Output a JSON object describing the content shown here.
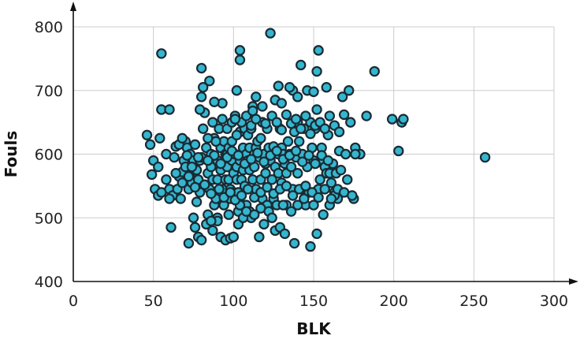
{
  "chart_data": {
    "type": "scatter",
    "title": "",
    "xlabel": "BLK",
    "ylabel": "Fouls",
    "xlim": [
      0,
      300
    ],
    "ylim": [
      400,
      800
    ],
    "xticks": [
      0,
      50,
      100,
      150,
      200,
      250,
      300
    ],
    "yticks": [
      400,
      500,
      600,
      700,
      800
    ],
    "grid": true,
    "legend": "none",
    "marker_color": "#35b6cf",
    "marker_edge_color": "#1a2a33",
    "points": [
      [
        46,
        630
      ],
      [
        48,
        615
      ],
      [
        49,
        568
      ],
      [
        50,
        590
      ],
      [
        51,
        545
      ],
      [
        53,
        535
      ],
      [
        54,
        625
      ],
      [
        55,
        670
      ],
      [
        53,
        580
      ],
      [
        55,
        758
      ],
      [
        55,
        540
      ],
      [
        58,
        560
      ],
      [
        58,
        600
      ],
      [
        60,
        670
      ],
      [
        60,
        545
      ],
      [
        61,
        485
      ],
      [
        62,
        535
      ],
      [
        63,
        595
      ],
      [
        64,
        612
      ],
      [
        66,
        565
      ],
      [
        67,
        530
      ],
      [
        68,
        572
      ],
      [
        69,
        590
      ],
      [
        70,
        620
      ],
      [
        71,
        610
      ],
      [
        72,
        545
      ],
      [
        73,
        600
      ],
      [
        73,
        570
      ],
      [
        74,
        555
      ],
      [
        75,
        590
      ],
      [
        76,
        615
      ],
      [
        77,
        575
      ],
      [
        77,
        525
      ],
      [
        78,
        560
      ],
      [
        79,
        590
      ],
      [
        79,
        540
      ],
      [
        80,
        595
      ],
      [
        80,
        735
      ],
      [
        80,
        690
      ],
      [
        81,
        705
      ],
      [
        82,
        665
      ],
      [
        83,
        610
      ],
      [
        84,
        570
      ],
      [
        85,
        545
      ],
      [
        86,
        600
      ],
      [
        86,
        580
      ],
      [
        87,
        560
      ],
      [
        88,
        520
      ],
      [
        88,
        625
      ],
      [
        89,
        530
      ],
      [
        90,
        590
      ],
      [
        90,
        560
      ],
      [
        90,
        500
      ],
      [
        91,
        640
      ],
      [
        92,
        610
      ],
      [
        92,
        575
      ],
      [
        93,
        545
      ],
      [
        94,
        520
      ],
      [
        94,
        620
      ],
      [
        95,
        600
      ],
      [
        95,
        560
      ],
      [
        96,
        600
      ],
      [
        96,
        580
      ],
      [
        97,
        610
      ],
      [
        97,
        560
      ],
      [
        98,
        545
      ],
      [
        98,
        530
      ],
      [
        99,
        620
      ],
      [
        99,
        590
      ],
      [
        100,
        570
      ],
      [
        100,
        540
      ],
      [
        101,
        660
      ],
      [
        101,
        600
      ],
      [
        102,
        580
      ],
      [
        102,
        560
      ],
      [
        103,
        540
      ],
      [
        103,
        510
      ],
      [
        104,
        635
      ],
      [
        104,
        590
      ],
      [
        105,
        560
      ],
      [
        105,
        520
      ],
      [
        106,
        610
      ],
      [
        106,
        575
      ],
      [
        107,
        640
      ],
      [
        107,
        550
      ],
      [
        108,
        600
      ],
      [
        108,
        520
      ],
      [
        109,
        630
      ],
      [
        109,
        590
      ],
      [
        110,
        610
      ],
      [
        110,
        575
      ],
      [
        111,
        640
      ],
      [
        111,
        500
      ],
      [
        112,
        560
      ],
      [
        112,
        675
      ],
      [
        113,
        600
      ],
      [
        113,
        580
      ],
      [
        114,
        545
      ],
      [
        114,
        610
      ],
      [
        115,
        620
      ],
      [
        116,
        595
      ],
      [
        117,
        560
      ],
      [
        118,
        650
      ],
      [
        118,
        530
      ],
      [
        119,
        600
      ],
      [
        120,
        585
      ],
      [
        120,
        570
      ],
      [
        121,
        640
      ],
      [
        121,
        520
      ],
      [
        122,
        610
      ],
      [
        123,
        590
      ],
      [
        124,
        560
      ],
      [
        125,
        530
      ],
      [
        125,
        612
      ],
      [
        126,
        580
      ],
      [
        127,
        520
      ],
      [
        128,
        600
      ],
      [
        128,
        570
      ],
      [
        129,
        640
      ],
      [
        130,
        610
      ],
      [
        130,
        555
      ],
      [
        131,
        600
      ],
      [
        132,
        585
      ],
      [
        133,
        570
      ],
      [
        133,
        520
      ],
      [
        134,
        620
      ],
      [
        135,
        600
      ],
      [
        136,
        580
      ],
      [
        137,
        545
      ],
      [
        137,
        700
      ],
      [
        138,
        635
      ],
      [
        139,
        595
      ],
      [
        140,
        570
      ],
      [
        140,
        650
      ],
      [
        141,
        620
      ],
      [
        142,
        545
      ],
      [
        143,
        600
      ],
      [
        144,
        640
      ],
      [
        145,
        520
      ],
      [
        146,
        580
      ],
      [
        147,
        540
      ],
      [
        148,
        650
      ],
      [
        149,
        610
      ],
      [
        150,
        520
      ],
      [
        150,
        590
      ],
      [
        151,
        640
      ],
      [
        152,
        730
      ],
      [
        152,
        670
      ],
      [
        153,
        545
      ],
      [
        154,
        560
      ],
      [
        155,
        610
      ],
      [
        156,
        590
      ],
      [
        157,
        580
      ],
      [
        158,
        570
      ],
      [
        159,
        630
      ],
      [
        160,
        570
      ],
      [
        161,
        555
      ],
      [
        162,
        585
      ],
      [
        163,
        540
      ],
      [
        164,
        570
      ],
      [
        165,
        530
      ],
      [
        166,
        605
      ],
      [
        167,
        575
      ],
      [
        170,
        600
      ],
      [
        171,
        560
      ],
      [
        172,
        700
      ],
      [
        175,
        530
      ],
      [
        176,
        610
      ],
      [
        179,
        600
      ],
      [
        183,
        660
      ],
      [
        188,
        730
      ],
      [
        199,
        655
      ],
      [
        203,
        605
      ],
      [
        205,
        650
      ],
      [
        206,
        655
      ],
      [
        257,
        595
      ],
      [
        60,
        530
      ],
      [
        65,
        545
      ],
      [
        70,
        580
      ],
      [
        75,
        500
      ],
      [
        78,
        470
      ],
      [
        80,
        465
      ],
      [
        83,
        490
      ],
      [
        87,
        480
      ],
      [
        90,
        495
      ],
      [
        92,
        470
      ],
      [
        95,
        465
      ],
      [
        98,
        468
      ],
      [
        100,
        470
      ],
      [
        103,
        490
      ],
      [
        106,
        500
      ],
      [
        110,
        510
      ],
      [
        113,
        505
      ],
      [
        117,
        515
      ],
      [
        122,
        510
      ],
      [
        126,
        480
      ],
      [
        129,
        485
      ],
      [
        132,
        475
      ],
      [
        136,
        510
      ],
      [
        140,
        520
      ],
      [
        144,
        530
      ],
      [
        148,
        455
      ],
      [
        152,
        475
      ],
      [
        156,
        505
      ],
      [
        160,
        520
      ],
      [
        163,
        535
      ],
      [
        72,
        460
      ],
      [
        76,
        485
      ],
      [
        84,
        505
      ],
      [
        86,
        495
      ],
      [
        97,
        505
      ],
      [
        104,
        520
      ],
      [
        108,
        510
      ],
      [
        119,
        490
      ],
      [
        124,
        500
      ],
      [
        131,
        520
      ],
      [
        123,
        790
      ],
      [
        104,
        763
      ],
      [
        104,
        748
      ],
      [
        153,
        763
      ],
      [
        142,
        740
      ],
      [
        85,
        715
      ],
      [
        102,
        700
      ],
      [
        128,
        707
      ],
      [
        135,
        705
      ],
      [
        146,
        700
      ],
      [
        66,
        615
      ],
      [
        68,
        625
      ],
      [
        71,
        598
      ],
      [
        74,
        580
      ],
      [
        78,
        595
      ],
      [
        81,
        640
      ],
      [
        84,
        625
      ],
      [
        87,
        650
      ],
      [
        89,
        620
      ],
      [
        93,
        655
      ],
      [
        96,
        640
      ],
      [
        99,
        650
      ],
      [
        102,
        630
      ],
      [
        105,
        650
      ],
      [
        108,
        660
      ],
      [
        111,
        645
      ],
      [
        114,
        655
      ],
      [
        117,
        625
      ],
      [
        120,
        648
      ],
      [
        124,
        660
      ],
      [
        127,
        650
      ],
      [
        130,
        638
      ],
      [
        133,
        662
      ],
      [
        136,
        648
      ],
      [
        139,
        655
      ],
      [
        142,
        640
      ],
      [
        145,
        660
      ],
      [
        148,
        632
      ],
      [
        151,
        645
      ],
      [
        154,
        650
      ],
      [
        157,
        640
      ],
      [
        160,
        660
      ],
      [
        163,
        645
      ],
      [
        166,
        635
      ],
      [
        169,
        662
      ],
      [
        173,
        650
      ],
      [
        176,
        600
      ],
      [
        114,
        690
      ],
      [
        118,
        675
      ],
      [
        126,
        685
      ],
      [
        140,
        690
      ],
      [
        150,
        698
      ],
      [
        158,
        705
      ],
      [
        168,
        690
      ],
      [
        130,
        680
      ],
      [
        112,
        668
      ],
      [
        101,
        655
      ],
      [
        93,
        680
      ],
      [
        79,
        670
      ],
      [
        88,
        682
      ],
      [
        64,
        570
      ],
      [
        68,
        555
      ],
      [
        72,
        565
      ],
      [
        76,
        548
      ],
      [
        82,
        552
      ],
      [
        86,
        538
      ],
      [
        91,
        545
      ],
      [
        94,
        532
      ],
      [
        98,
        540
      ],
      [
        101,
        528
      ],
      [
        105,
        535
      ],
      [
        109,
        545
      ],
      [
        113,
        532
      ],
      [
        117,
        540
      ],
      [
        121,
        548
      ],
      [
        125,
        538
      ],
      [
        129,
        545
      ],
      [
        133,
        550
      ],
      [
        137,
        535
      ],
      [
        141,
        545
      ],
      [
        145,
        550
      ],
      [
        149,
        540
      ],
      [
        153,
        532
      ],
      [
        157,
        545
      ],
      [
        161,
        530
      ],
      [
        165,
        545
      ],
      [
        169,
        540
      ],
      [
        174,
        535
      ],
      [
        116,
        470
      ],
      [
        138,
        460
      ],
      [
        96,
        595
      ],
      [
        99,
        605
      ],
      [
        103,
        598
      ],
      [
        107,
        585
      ],
      [
        111,
        592
      ],
      [
        115,
        602
      ],
      [
        119,
        588
      ],
      [
        123,
        598
      ],
      [
        127,
        605
      ],
      [
        131,
        592
      ],
      [
        135,
        598
      ],
      [
        139,
        605
      ],
      [
        143,
        588
      ],
      [
        147,
        598
      ],
      [
        151,
        585
      ],
      [
        155,
        598
      ],
      [
        159,
        590
      ],
      [
        92,
        585
      ],
      [
        88,
        598
      ],
      [
        84,
        590
      ]
    ]
  }
}
